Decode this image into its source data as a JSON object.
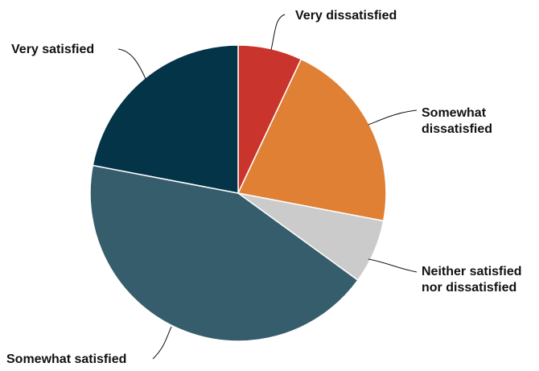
{
  "chart_data": {
    "type": "pie",
    "title": "",
    "start": "12 o'clock",
    "direction": "clockwise",
    "slices": [
      {
        "label": [
          "Very dissatisfied"
        ],
        "value": 7,
        "color": "#c9352c"
      },
      {
        "label": [
          "Somewhat",
          "dissatisfied"
        ],
        "value": 21,
        "color": "#df8035"
      },
      {
        "label": [
          "Neither satisfied",
          "nor dissatisfied"
        ],
        "value": 7,
        "color": "#cbcbcb"
      },
      {
        "label": [
          "Somewhat satisfied"
        ],
        "value": 43,
        "color": "#365d6c"
      },
      {
        "label": [
          "Very satisfied"
        ],
        "value": 22,
        "color": "#033447"
      }
    ],
    "legend": "none"
  }
}
